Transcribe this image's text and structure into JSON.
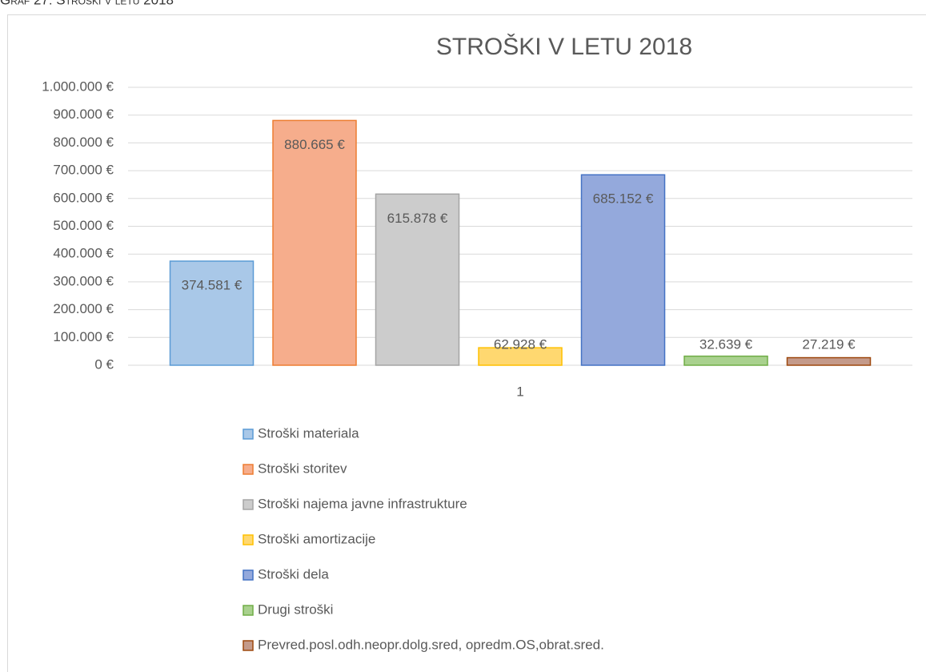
{
  "caption": "Graf 27: Stroški v letu 2018",
  "chart_data": {
    "type": "bar",
    "title": "STROŠKI V LETU 2018",
    "categories": [
      "1"
    ],
    "series": [
      {
        "name": "Stroški materiala",
        "color": "#a9c8e8",
        "edgecolor": "#5b9bd5",
        "values": [
          374581
        ],
        "value_labels": [
          "374.581 €"
        ]
      },
      {
        "name": "Stroški storitev",
        "color": "#f6ad8c",
        "edgecolor": "#ed7d31",
        "values": [
          880665
        ],
        "value_labels": [
          "880.665 €"
        ]
      },
      {
        "name": "Stroški najema javne infrastrukture",
        "color": "#cccccc",
        "edgecolor": "#a5a5a5",
        "values": [
          615878
        ],
        "value_labels": [
          "615.878 €"
        ]
      },
      {
        "name": "Stroški amortizacije",
        "color": "#ffd870",
        "edgecolor": "#ffc000",
        "values": [
          62928
        ],
        "value_labels": [
          "62.928 €"
        ]
      },
      {
        "name": "Stroški dela",
        "color": "#94a9dc",
        "edgecolor": "#4472c4",
        "values": [
          685152
        ],
        "value_labels": [
          "685.152 €"
        ]
      },
      {
        "name": "Drugi stroški",
        "color": "#a9d18e",
        "edgecolor": "#70ad47",
        "values": [
          32639
        ],
        "value_labels": [
          "32.639 €"
        ]
      },
      {
        "name": "Prevred.posl.odh.neopr.dolg.sred, opredm.OS,obrat.sred.",
        "color": "#c49a8a",
        "edgecolor": "#9e480e",
        "values": [
          27219
        ],
        "value_labels": [
          "27.219 €"
        ]
      }
    ],
    "ylim": [
      0,
      1000000
    ],
    "yticks": [
      {
        "value": 0,
        "label": "0 €"
      },
      {
        "value": 100000,
        "label": "100.000 €"
      },
      {
        "value": 200000,
        "label": "200.000 €"
      },
      {
        "value": 300000,
        "label": "300.000 €"
      },
      {
        "value": 400000,
        "label": "400.000 €"
      },
      {
        "value": 500000,
        "label": "500.000 €"
      },
      {
        "value": 600000,
        "label": "600.000 €"
      },
      {
        "value": 700000,
        "label": "700.000 €"
      },
      {
        "value": 800000,
        "label": "800.000 €"
      },
      {
        "value": 900000,
        "label": "900.000 €"
      },
      {
        "value": 1000000,
        "label": "1.000.000 €"
      }
    ],
    "grid": true,
    "legend": "bottom"
  }
}
